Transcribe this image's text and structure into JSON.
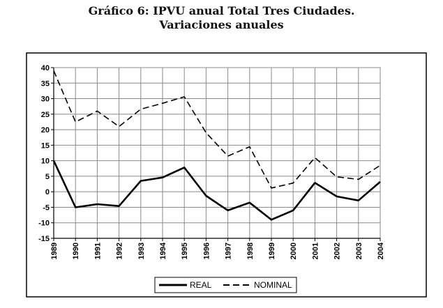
{
  "chart_data": {
    "type": "line",
    "title_line1": "Gráfico 6: IPVU anual Total Tres Ciudades.",
    "title_line2": "Variaciones anuales",
    "categories": [
      "1989",
      "1990",
      "1991",
      "1992",
      "1993",
      "1994",
      "1995",
      "1996",
      "1997",
      "1998",
      "1999",
      "2000",
      "2001",
      "2002",
      "2003",
      "2004"
    ],
    "series": [
      {
        "name": "REAL",
        "style": "solid",
        "color": "#000000",
        "values": [
          10,
          -5,
          -4,
          -4.6,
          3.5,
          4.6,
          7.8,
          -1.3,
          -6,
          -3.5,
          -9,
          -6,
          2.9,
          -1.5,
          -2.8,
          3.2
        ]
      },
      {
        "name": "NOMINAL",
        "style": "dashed",
        "color": "#000000",
        "values": [
          39,
          22.5,
          26,
          21,
          26.6,
          28.5,
          30.6,
          19,
          11.5,
          14.5,
          1.2,
          2.8,
          11,
          4.8,
          4,
          8.5
        ]
      }
    ],
    "ylim": [
      -15,
      40
    ],
    "ytick_step": 5,
    "grid": true,
    "legend_position": "bottom-center"
  }
}
